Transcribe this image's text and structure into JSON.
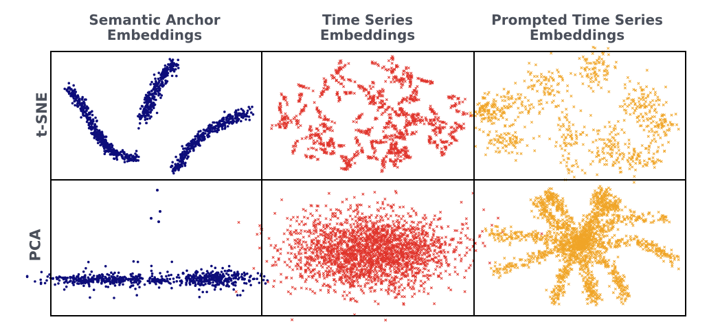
{
  "columns": [
    {
      "title": "Semantic Anchor Embeddings",
      "line1": "Semantic Anchor",
      "line2": "Embeddings",
      "color": "#0d0d7a",
      "marker": "dot"
    },
    {
      "title": "Time Series Embeddings",
      "line1": "Time Series",
      "line2": "Embeddings",
      "color": "#e0352c",
      "marker": "x"
    },
    {
      "title": "Prompted Time Series Embeddings",
      "line1": "Prompted Time Series",
      "line2": "Embeddings",
      "color": "#f0a528",
      "marker": "x"
    }
  ],
  "rows": [
    {
      "label": "t-SNE"
    },
    {
      "label": "PCA"
    }
  ],
  "chart_data": {
    "type": "scatter",
    "layout": "2x3 small multiples",
    "columns": [
      "Semantic Anchor Embeddings",
      "Time Series Embeddings",
      "Prompted Time Series Embeddings"
    ],
    "rows": [
      "t-SNE",
      "PCA"
    ],
    "axes": "hidden",
    "grid": false,
    "panels": [
      {
        "row": "t-SNE",
        "column": "Semantic Anchor Embeddings",
        "pattern": "three elongated curved clusters",
        "color": "#0d0d7a",
        "marker": "dot"
      },
      {
        "row": "t-SNE",
        "column": "Time Series Embeddings",
        "pattern": "many short worm-like fragments filling an ellipse",
        "color": "#e0352c",
        "marker": "x"
      },
      {
        "row": "t-SNE",
        "column": "Prompted Time Series Embeddings",
        "pattern": "about nine separated blob clusters arranged radially",
        "color": "#f0a528",
        "marker": "x"
      },
      {
        "row": "PCA",
        "column": "Semantic Anchor Embeddings",
        "pattern": "two horizontal bands with a small central cluster and a few outliers above",
        "color": "#0d0d7a",
        "marker": "dot"
      },
      {
        "row": "PCA",
        "column": "Time Series Embeddings",
        "pattern": "dense diffuse elliptical cloud",
        "color": "#e0352c",
        "marker": "x"
      },
      {
        "row": "PCA",
        "column": "Prompted Time Series Embeddings",
        "pattern": "star shape with about eleven radiating arms",
        "color": "#f0a528",
        "marker": "x"
      }
    ]
  }
}
